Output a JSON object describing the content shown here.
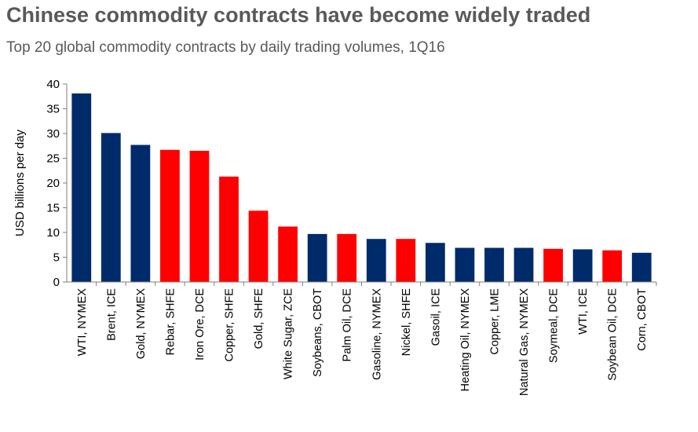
{
  "title": "Chinese commodity contracts have become widely traded",
  "subtitle": "Top 20 global commodity contracts by daily trading volumes, 1Q16",
  "colors": {
    "non_chinese": "#002b6b",
    "chinese": "#ff0000",
    "axis": "#7f7f7f",
    "text": "#595959"
  },
  "chart_data": {
    "type": "bar",
    "title": "Chinese commodity contracts have become widely traded",
    "subtitle": "Top 20 global commodity contracts by daily trading volumes, 1Q16",
    "xlabel": "",
    "ylabel": "USD billions per day",
    "ylim": [
      0,
      40
    ],
    "yticks": [
      0,
      5,
      10,
      15,
      20,
      25,
      30,
      35,
      40
    ],
    "grid": false,
    "categories": [
      "WTI, NYMEX",
      "Brent, ICE",
      "Gold, NYMEX",
      "Rebar, SHFE",
      "Iron Ore, DCE",
      "Copper, SHFE",
      "Gold, SHFE",
      "White Sugar, ZCE",
      "Soybeans, CBOT",
      "Palm Oil, DCE",
      "Gasoline, NYMEX",
      "Nickel, SHFE",
      "Gasoil, ICE",
      "Heating Oil, NYMEX",
      "Copper, LME",
      "Natural Gas, NYMEX",
      "Soymeal, DCE",
      "WTI, ICE",
      "Soybean Oil, DCE",
      "Corn, CBOT"
    ],
    "values": [
      38.1,
      30.1,
      27.7,
      26.7,
      26.5,
      21.3,
      14.4,
      11.2,
      9.7,
      9.7,
      8.7,
      8.7,
      7.9,
      6.9,
      6.9,
      6.9,
      6.7,
      6.6,
      6.4,
      5.9
    ],
    "bar_colors": [
      "#002b6b",
      "#002b6b",
      "#002b6b",
      "#ff0000",
      "#ff0000",
      "#ff0000",
      "#ff0000",
      "#ff0000",
      "#002b6b",
      "#ff0000",
      "#002b6b",
      "#ff0000",
      "#002b6b",
      "#002b6b",
      "#002b6b",
      "#002b6b",
      "#ff0000",
      "#002b6b",
      "#ff0000",
      "#002b6b"
    ]
  }
}
